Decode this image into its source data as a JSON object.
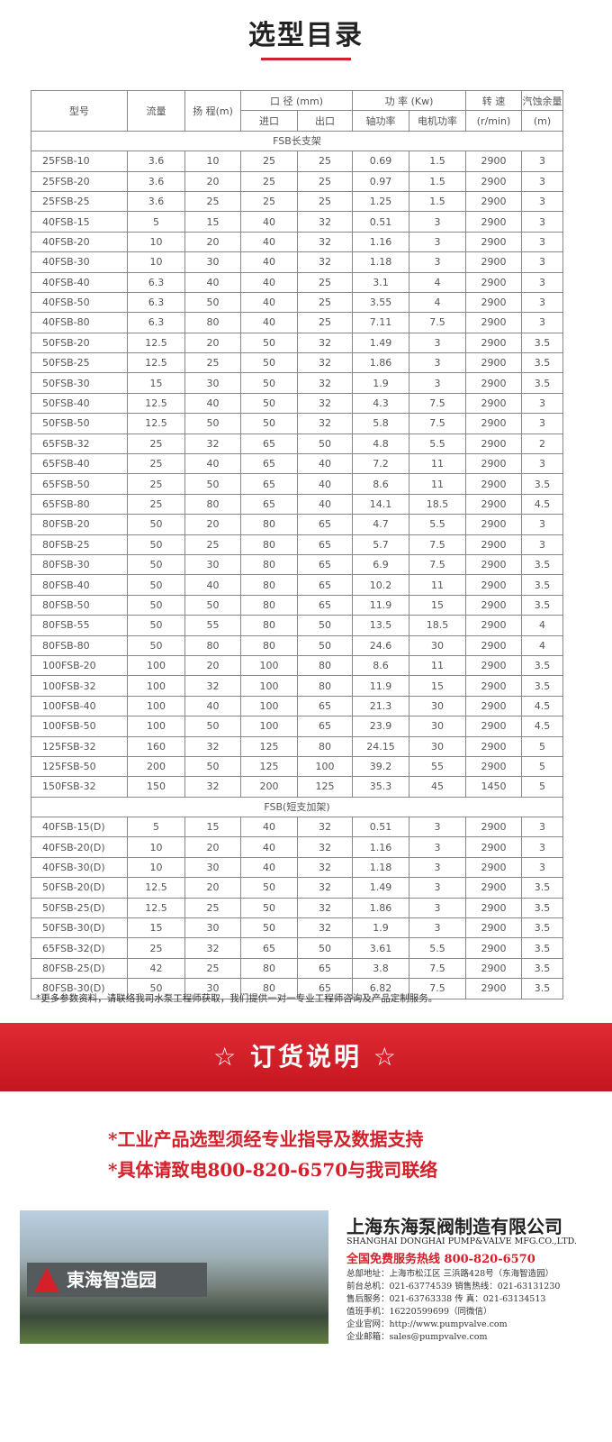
{
  "title": "选型目录",
  "headers": {
    "model": "型号",
    "flow": "流量",
    "head": "扬 程(m)",
    "diameter": "口 径 (mm)",
    "power": "功 率 (Kw)",
    "speed": "转 速",
    "npsh": "汽蚀余量",
    "inlet": "进口",
    "outlet": "出口",
    "shaft_power": "轴功率",
    "motor_power": "电机功率",
    "speed_unit": "(r/min)",
    "npsh_unit": "(m)"
  },
  "sections": [
    {
      "name": "FSB长支架",
      "rows": [
        [
          "25FSB-10",
          "3.6",
          "10",
          "25",
          "25",
          "0.69",
          "1.5",
          "2900",
          "3"
        ],
        [
          "25FSB-20",
          "3.6",
          "20",
          "25",
          "25",
          "0.97",
          "1.5",
          "2900",
          "3"
        ],
        [
          "25FSB-25",
          "3.6",
          "25",
          "25",
          "25",
          "1.25",
          "1.5",
          "2900",
          "3"
        ],
        [
          "40FSB-15",
          "5",
          "15",
          "40",
          "32",
          "0.51",
          "3",
          "2900",
          "3"
        ],
        [
          "40FSB-20",
          "10",
          "20",
          "40",
          "32",
          "1.16",
          "3",
          "2900",
          "3"
        ],
        [
          "40FSB-30",
          "10",
          "30",
          "40",
          "32",
          "1.18",
          "3",
          "2900",
          "3"
        ],
        [
          "40FSB-40",
          "6.3",
          "40",
          "40",
          "25",
          "3.1",
          "4",
          "2900",
          "3"
        ],
        [
          "40FSB-50",
          "6.3",
          "50",
          "40",
          "25",
          "3.55",
          "4",
          "2900",
          "3"
        ],
        [
          "40FSB-80",
          "6.3",
          "80",
          "40",
          "25",
          "7.11",
          "7.5",
          "2900",
          "3"
        ],
        [
          "50FSB-20",
          "12.5",
          "20",
          "50",
          "32",
          "1.49",
          "3",
          "2900",
          "3.5"
        ],
        [
          "50FSB-25",
          "12.5",
          "25",
          "50",
          "32",
          "1.86",
          "3",
          "2900",
          "3.5"
        ],
        [
          "50FSB-30",
          "15",
          "30",
          "50",
          "32",
          "1.9",
          "3",
          "2900",
          "3.5"
        ],
        [
          "50FSB-40",
          "12.5",
          "40",
          "50",
          "32",
          "4.3",
          "7.5",
          "2900",
          "3"
        ],
        [
          "50FSB-50",
          "12.5",
          "50",
          "50",
          "32",
          "5.8",
          "7.5",
          "2900",
          "3"
        ],
        [
          "65FSB-32",
          "25",
          "32",
          "65",
          "50",
          "4.8",
          "5.5",
          "2900",
          "2"
        ],
        [
          "65FSB-40",
          "25",
          "40",
          "65",
          "40",
          "7.2",
          "11",
          "2900",
          "3"
        ],
        [
          "65FSB-50",
          "25",
          "50",
          "65",
          "40",
          "8.6",
          "11",
          "2900",
          "3.5"
        ],
        [
          "65FSB-80",
          "25",
          "80",
          "65",
          "40",
          "14.1",
          "18.5",
          "2900",
          "4.5"
        ],
        [
          "80FSB-20",
          "50",
          "20",
          "80",
          "65",
          "4.7",
          "5.5",
          "2900",
          "3"
        ],
        [
          "80FSB-25",
          "50",
          "25",
          "80",
          "65",
          "5.7",
          "7.5",
          "2900",
          "3"
        ],
        [
          "80FSB-30",
          "50",
          "30",
          "80",
          "65",
          "6.9",
          "7.5",
          "2900",
          "3.5"
        ],
        [
          "80FSB-40",
          "50",
          "40",
          "80",
          "65",
          "10.2",
          "11",
          "2900",
          "3.5"
        ],
        [
          "80FSB-50",
          "50",
          "50",
          "80",
          "65",
          "11.9",
          "15",
          "2900",
          "3.5"
        ],
        [
          "80FSB-55",
          "50",
          "55",
          "80",
          "50",
          "13.5",
          "18.5",
          "2900",
          "4"
        ],
        [
          "80FSB-80",
          "50",
          "80",
          "80",
          "50",
          "24.6",
          "30",
          "2900",
          "4"
        ],
        [
          "100FSB-20",
          "100",
          "20",
          "100",
          "80",
          "8.6",
          "11",
          "2900",
          "3.5"
        ],
        [
          "100FSB-32",
          "100",
          "32",
          "100",
          "80",
          "11.9",
          "15",
          "2900",
          "3.5"
        ],
        [
          "100FSB-40",
          "100",
          "40",
          "100",
          "65",
          "21.3",
          "30",
          "2900",
          "4.5"
        ],
        [
          "100FSB-50",
          "100",
          "50",
          "100",
          "65",
          "23.9",
          "30",
          "2900",
          "4.5"
        ],
        [
          "125FSB-32",
          "160",
          "32",
          "125",
          "80",
          "24.15",
          "30",
          "2900",
          "5"
        ],
        [
          "125FSB-50",
          "200",
          "50",
          "125",
          "100",
          "39.2",
          "55",
          "2900",
          "5"
        ],
        [
          "150FSB-32",
          "150",
          "32",
          "200",
          "125",
          "35.3",
          "45",
          "1450",
          "5"
        ]
      ]
    },
    {
      "name": "FSB(短支加架)",
      "rows": [
        [
          "40FSB-15(D)",
          "5",
          "15",
          "40",
          "32",
          "0.51",
          "3",
          "2900",
          "3"
        ],
        [
          "40FSB-20(D)",
          "10",
          "20",
          "40",
          "32",
          "1.16",
          "3",
          "2900",
          "3"
        ],
        [
          "40FSB-30(D)",
          "10",
          "30",
          "40",
          "32",
          "1.18",
          "3",
          "2900",
          "3"
        ],
        [
          "50FSB-20(D)",
          "12.5",
          "20",
          "50",
          "32",
          "1.49",
          "3",
          "2900",
          "3.5"
        ],
        [
          "50FSB-25(D)",
          "12.5",
          "25",
          "50",
          "32",
          "1.86",
          "3",
          "2900",
          "3.5"
        ],
        [
          "50FSB-30(D)",
          "15",
          "30",
          "50",
          "32",
          "1.9",
          "3",
          "2900",
          "3.5"
        ],
        [
          "65FSB-32(D)",
          "25",
          "32",
          "65",
          "50",
          "3.61",
          "5.5",
          "2900",
          "3.5"
        ],
        [
          "80FSB-25(D)",
          "42",
          "25",
          "80",
          "65",
          "3.8",
          "7.5",
          "2900",
          "3.5"
        ],
        [
          "80FSB-30(D)",
          "50",
          "30",
          "80",
          "65",
          "6.82",
          "7.5",
          "2900",
          "3.5"
        ]
      ]
    }
  ],
  "note": "*更多参数资料，请联络我司水泵工程师获取，我们提供一对一专业工程师咨询及产品定制服务。",
  "banner": "☆ 订货说明 ☆",
  "order_lines": [
    "*工业产品选型须经专业指导及数据支持",
    "*具体请致电800-820-6570与我司联络"
  ],
  "sign_text": "東海智造园",
  "company": {
    "name": "上海东海泵阀制造有限公司",
    "english": "SHANGHAI DONGHAI PUMP&VALVE MFG.CO.,LTD.",
    "hotline": "全国免费服务热线  800-820-6570",
    "info": [
      "总部地址：上海市松江区 三浜路428号（东海智造园）",
      "前台总机：021-63774539  销售热线：021-63131230",
      "售后服务：021-63763338  传    真：021-63134513",
      "值班手机：16220599699（同微信）",
      "企业官网：http://www.pumpvalve.com",
      "企业邮箱：sales@pumpvalve.com"
    ]
  },
  "colors": {
    "accent": "#d3202a"
  }
}
